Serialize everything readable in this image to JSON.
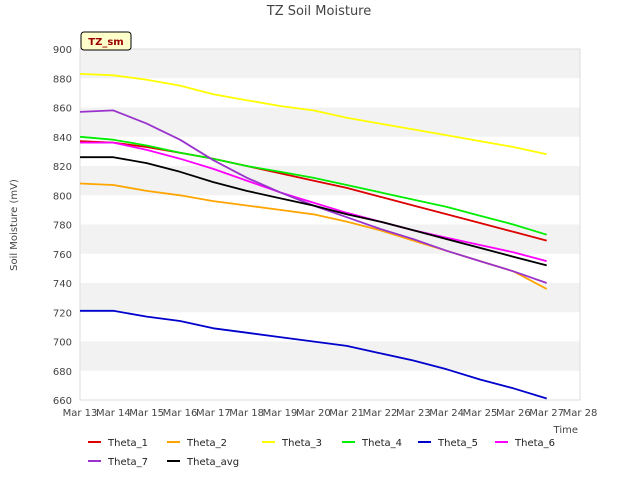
{
  "chart_data": {
    "type": "line",
    "title": "TZ Soil Moisture",
    "xlabel": "Time",
    "ylabel": "Soil Moisture (mV)",
    "ylim": [
      660,
      900
    ],
    "yticks": [
      660,
      680,
      700,
      720,
      740,
      760,
      780,
      800,
      820,
      840,
      860,
      880,
      900
    ],
    "xlim": [
      "Mar 13",
      "Mar 28"
    ],
    "xticks": [
      "Mar 13",
      "Mar 14",
      "Mar 15",
      "Mar 16",
      "Mar 17",
      "Mar 18",
      "Mar 19",
      "Mar 20",
      "Mar 21",
      "Mar 22",
      "Mar 23",
      "Mar 24",
      "Mar 25",
      "Mar 26",
      "Mar 27",
      "Mar 28"
    ],
    "grid": "horizontal bands",
    "legend_position": "bottom",
    "annotation": "TZ_sm",
    "x": [
      "Mar 13",
      "Mar 14",
      "Mar 15",
      "Mar 16",
      "Mar 17",
      "Mar 18",
      "Mar 19",
      "Mar 20",
      "Mar 21",
      "Mar 22",
      "Mar 23",
      "Mar 24",
      "Mar 25",
      "Mar 26",
      "Mar 27"
    ],
    "series": [
      {
        "name": "Theta_1",
        "color": "#dd0000",
        "values": [
          837,
          836,
          833,
          829,
          825,
          820,
          815,
          810,
          805,
          799,
          793,
          787,
          781,
          775,
          769
        ]
      },
      {
        "name": "Theta_2",
        "color": "#ffa500",
        "values": [
          808,
          807,
          803,
          800,
          796,
          793,
          790,
          787,
          782,
          776,
          769,
          762,
          755,
          748,
          736
        ]
      },
      {
        "name": "Theta_3",
        "color": "#ffff00",
        "values": [
          883,
          882,
          879,
          875,
          869,
          865,
          861,
          858,
          853,
          849,
          845,
          841,
          837,
          833,
          828
        ]
      },
      {
        "name": "Theta_4",
        "color": "#00ee00",
        "values": [
          840,
          838,
          834,
          829,
          825,
          820,
          816,
          812,
          807,
          802,
          797,
          792,
          786,
          780,
          773
        ]
      },
      {
        "name": "Theta_5",
        "color": "#0000cc",
        "values": [
          721,
          721,
          717,
          714,
          709,
          706,
          703,
          700,
          697,
          692,
          687,
          681,
          674,
          668,
          661
        ]
      },
      {
        "name": "Theta_6",
        "color": "#ff00ff",
        "values": [
          836,
          836,
          831,
          825,
          818,
          810,
          802,
          795,
          788,
          782,
          776,
          771,
          766,
          761,
          755
        ]
      },
      {
        "name": "Theta_7",
        "color": "#9933cc",
        "values": [
          857,
          858,
          849,
          838,
          824,
          812,
          802,
          793,
          785,
          777,
          770,
          762,
          755,
          748,
          740
        ]
      },
      {
        "name": "Theta_avg",
        "color": "#000000",
        "values": [
          826,
          826,
          822,
          816,
          809,
          803,
          798,
          793,
          787,
          782,
          776,
          770,
          764,
          758,
          752
        ]
      }
    ]
  }
}
